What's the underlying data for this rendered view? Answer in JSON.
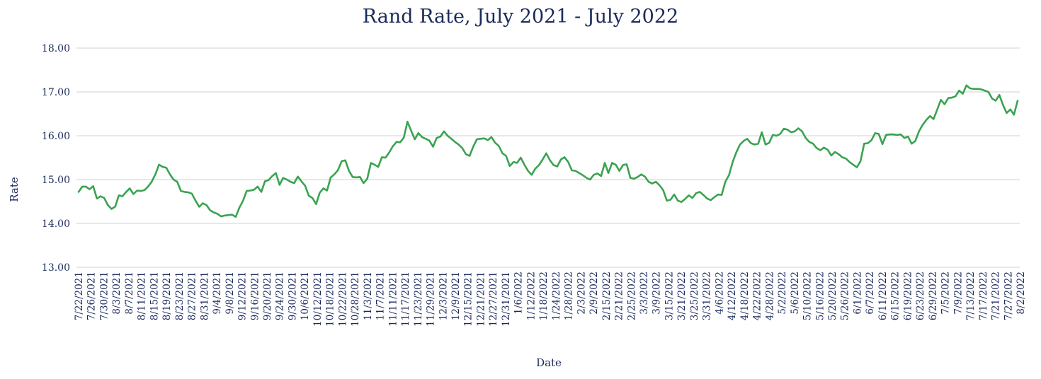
{
  "chart_data": {
    "type": "line",
    "title": "Rand Rate, July 2021 - July 2022",
    "xlabel": "Date",
    "ylabel": "Rate",
    "ylim": [
      13,
      18
    ],
    "y_ticks": [
      "13.00",
      "14.00",
      "15.00",
      "16.00",
      "17.00",
      "18.00"
    ],
    "x_tick_labels": [
      "7/22/2021",
      "7/26/2021",
      "7/30/2021",
      "8/3/2021",
      "8/7/2021",
      "8/11/2021",
      "8/15/2021",
      "8/19/2021",
      "8/23/2021",
      "8/27/2021",
      "8/31/2021",
      "9/4/2021",
      "9/8/2021",
      "9/12/2021",
      "9/16/2021",
      "9/20/2021",
      "9/24/2021",
      "9/30/2021",
      "10/6/2021",
      "10/12/2021",
      "10/18/2021",
      "10/22/2021",
      "10/28/2021",
      "11/3/2021",
      "11/7/2021",
      "11/11/2021",
      "11/17/2021",
      "11/23/2021",
      "11/29/2021",
      "12/3/2021",
      "12/9/2021",
      "12/15/2021",
      "12/21/2021",
      "12/27/2021",
      "12/31/2021",
      "1/6/2022",
      "1/12/2022",
      "1/18/2022",
      "1/24/2022",
      "1/28/2022",
      "2/3/2022",
      "2/9/2022",
      "2/15/2022",
      "2/21/2022",
      "2/25/2022",
      "3/3/2022",
      "3/9/2022",
      "3/15/2022",
      "3/21/2022",
      "3/25/2022",
      "3/31/2022",
      "4/6/2022",
      "4/12/2022",
      "4/18/2022",
      "4/22/2022",
      "4/28/2022",
      "5/2/2022",
      "5/6/2022",
      "5/10/2022",
      "5/16/2022",
      "5/20/2022",
      "5/26/2022",
      "6/1/2022",
      "6/7/2022",
      "6/11/2022",
      "6/15/2022",
      "6/19/2022",
      "6/23/2022",
      "6/29/2022",
      "7/5/2022",
      "7/9/2022",
      "7/13/2022",
      "7/17/2022",
      "7/21/2022",
      "7/27/2022",
      "8/2/2022"
    ],
    "grid": true,
    "legend": "none",
    "line_color": "#3aa351",
    "series": [
      {
        "values": [
          14.72,
          14.84,
          14.84,
          14.78,
          14.85,
          14.57,
          14.62,
          14.58,
          14.42,
          14.33,
          14.38,
          14.64,
          14.62,
          14.72,
          14.8,
          14.67,
          14.75,
          14.74,
          14.76,
          14.84,
          14.95,
          15.12,
          15.34,
          15.29,
          15.27,
          15.12,
          15.0,
          14.95,
          14.74,
          14.72,
          14.71,
          14.68,
          14.52,
          14.38,
          14.46,
          14.42,
          14.3,
          14.25,
          14.22,
          14.16,
          14.18,
          14.19,
          14.2,
          14.15,
          14.36,
          14.52,
          14.74,
          14.75,
          14.77,
          14.84,
          14.72,
          14.96,
          14.99,
          15.08,
          15.15,
          14.88,
          15.04,
          15.0,
          14.95,
          14.92,
          15.07,
          14.96,
          14.86,
          14.63,
          14.58,
          14.44,
          14.7,
          14.8,
          14.75,
          15.05,
          15.12,
          15.22,
          15.42,
          15.44,
          15.2,
          15.06,
          15.05,
          15.06,
          14.92,
          15.02,
          15.38,
          15.34,
          15.29,
          15.51,
          15.5,
          15.62,
          15.76,
          15.86,
          15.85,
          15.96,
          16.32,
          16.12,
          15.92,
          16.06,
          15.97,
          15.93,
          15.89,
          15.75,
          15.95,
          15.98,
          16.1,
          16.0,
          15.93,
          15.86,
          15.8,
          15.72,
          15.58,
          15.54,
          15.75,
          15.92,
          15.93,
          15.94,
          15.9,
          15.97,
          15.84,
          15.77,
          15.6,
          15.54,
          15.31,
          15.4,
          15.38,
          15.5,
          15.34,
          15.2,
          15.11,
          15.25,
          15.33,
          15.46,
          15.6,
          15.44,
          15.33,
          15.3,
          15.46,
          15.51,
          15.4,
          15.21,
          15.2,
          15.15,
          15.1,
          15.04,
          15.0,
          15.11,
          15.14,
          15.08,
          15.38,
          15.15,
          15.38,
          15.34,
          15.2,
          15.33,
          15.35,
          15.04,
          15.02,
          15.06,
          15.12,
          15.07,
          14.95,
          14.91,
          14.95,
          14.87,
          14.76,
          14.52,
          14.54,
          14.66,
          14.52,
          14.49,
          14.56,
          14.64,
          14.58,
          14.69,
          14.72,
          14.65,
          14.57,
          14.53,
          14.6,
          14.66,
          14.65,
          14.95,
          15.1,
          15.4,
          15.62,
          15.8,
          15.88,
          15.93,
          15.83,
          15.8,
          15.82,
          16.08,
          15.8,
          15.84,
          16.02,
          16.0,
          16.04,
          16.16,
          16.14,
          16.08,
          16.1,
          16.17,
          16.1,
          15.95,
          15.86,
          15.82,
          15.72,
          15.67,
          15.73,
          15.68,
          15.55,
          15.63,
          15.58,
          15.51,
          15.48,
          15.4,
          15.34,
          15.28,
          15.42,
          15.82,
          15.83,
          15.9,
          16.06,
          16.04,
          15.81,
          16.02,
          16.03,
          16.03,
          16.02,
          16.03,
          15.95,
          15.98,
          15.82,
          15.88,
          16.1,
          16.25,
          16.36,
          16.45,
          16.38,
          16.6,
          16.82,
          16.72,
          16.86,
          16.87,
          16.9,
          17.03,
          16.96,
          17.15,
          17.08,
          17.07,
          17.07,
          17.06,
          17.03,
          17.0,
          16.85,
          16.8,
          16.93,
          16.7,
          16.52,
          16.6,
          16.48,
          16.8
        ]
      }
    ]
  }
}
